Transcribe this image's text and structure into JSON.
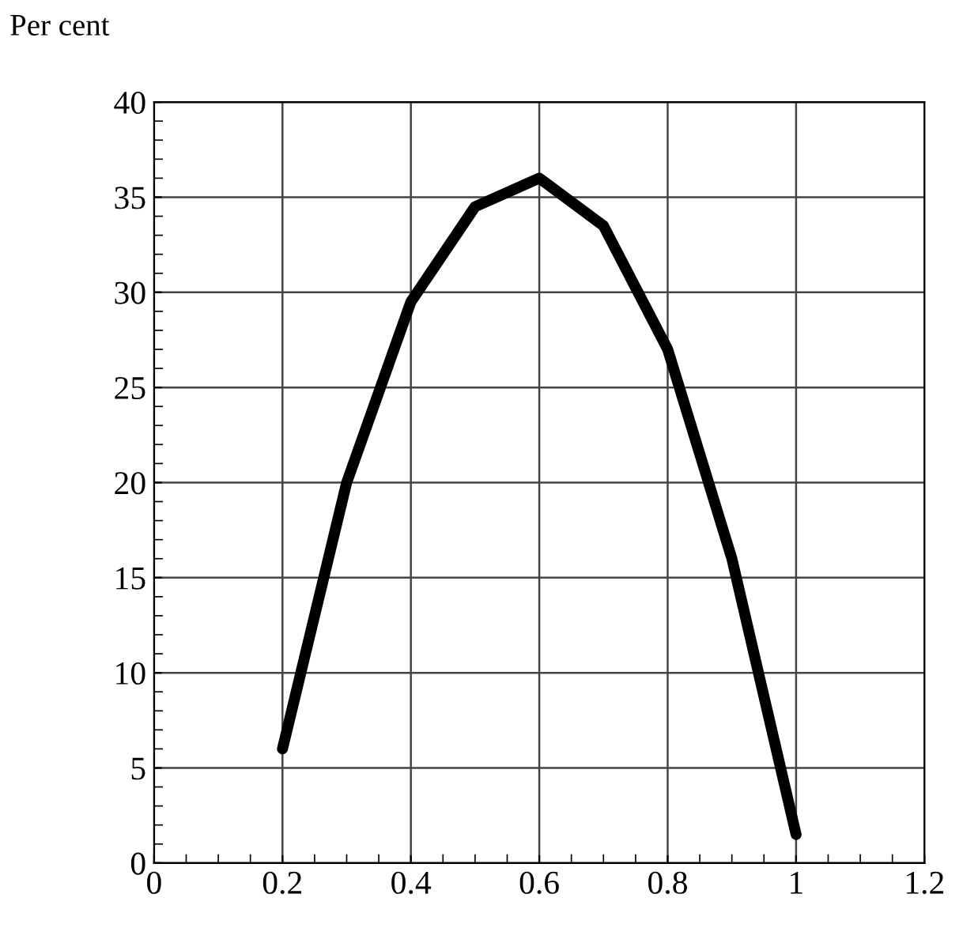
{
  "chart_data": {
    "type": "line",
    "ylabel": "Per cent",
    "x": [
      0.2,
      0.3,
      0.4,
      0.5,
      0.6,
      0.7,
      0.8,
      0.9,
      1.0
    ],
    "series": [
      {
        "color": "#000000",
        "values": [
          6,
          20,
          29.5,
          34.5,
          36,
          33.5,
          27,
          16,
          1.5
        ]
      }
    ],
    "xlim": [
      0,
      1.2
    ],
    "xticks": [
      0,
      0.2,
      0.4,
      0.6,
      0.8,
      1,
      1.2
    ],
    "ylim": [
      0,
      40
    ],
    "yticks": [
      0,
      5,
      10,
      15,
      20,
      25,
      30,
      35,
      40
    ],
    "grid": true,
    "marker": "none",
    "line_style": "solid"
  }
}
